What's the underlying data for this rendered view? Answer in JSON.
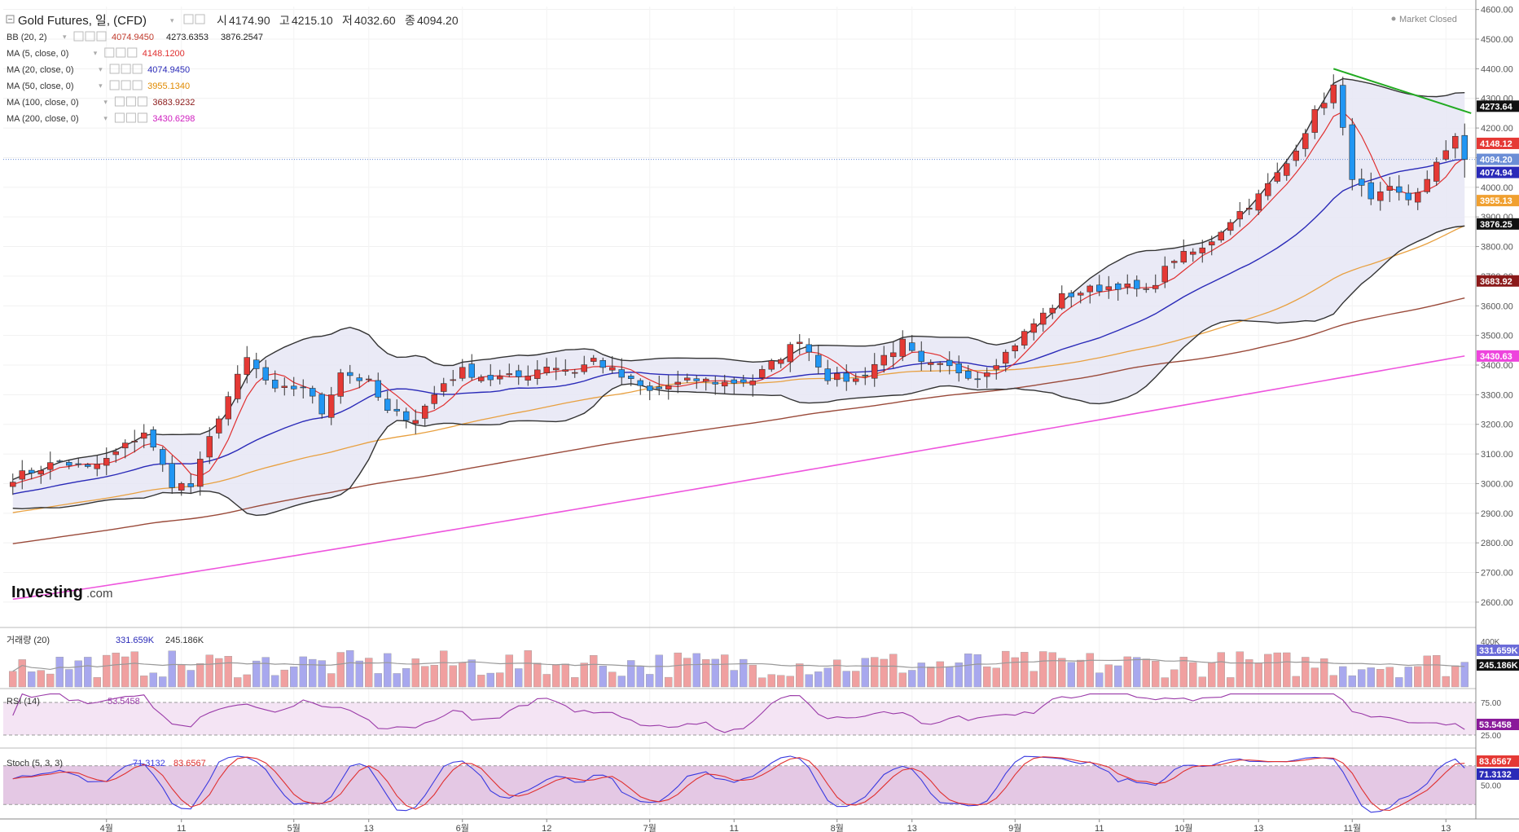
{
  "header": {
    "symbol": "Gold Futures, 일, (CFD)",
    "ohlc": [
      {
        "label": "시",
        "value": "4174.90"
      },
      {
        "label": "고",
        "value": "4215.10"
      },
      {
        "label": "저",
        "value": "4032.60"
      },
      {
        "label": "종",
        "value": "4094.20"
      }
    ],
    "market_status": "Market Closed"
  },
  "indicator_legend": [
    {
      "label": "BB (20, 2)",
      "values": [
        "4074.9450",
        "4273.6353",
        "3876.2547"
      ],
      "colors": [
        "#c0392b",
        "#222222",
        "#222222"
      ]
    },
    {
      "label": "MA (5, close, 0)",
      "values": [
        "4148.1200"
      ],
      "colors": [
        "#e03030"
      ]
    },
    {
      "label": "MA (20, close, 0)",
      "values": [
        "4074.9450"
      ],
      "colors": [
        "#2a2ab8"
      ]
    },
    {
      "label": "MA (50, close, 0)",
      "values": [
        "3955.1340"
      ],
      "colors": [
        "#e08a00"
      ]
    },
    {
      "label": "MA (100, close, 0)",
      "values": [
        "3683.9232"
      ],
      "colors": [
        "#8b1a1a"
      ]
    },
    {
      "label": "MA (200, close, 0)",
      "values": [
        "3430.6298"
      ],
      "colors": [
        "#d020c0"
      ]
    }
  ],
  "brand": {
    "name": "Investing",
    "suffix": ".com"
  },
  "colors": {
    "up": "#e53935",
    "down": "#2196f3",
    "bb_fill": "#e6e6f4",
    "ma5": "#e03030",
    "ma20": "#2a2ab8",
    "ma50": "#e8a040",
    "ma100": "#9a4a3a",
    "ma200": "#ee55dd",
    "trendline": "#22aa22"
  },
  "chart_data": [
    {
      "type": "candlestick",
      "title": "Gold Futures, 일, (CFD)",
      "x_tick_labels": [
        "4월",
        "11",
        "5월",
        "13",
        "6월",
        "12",
        "7월",
        "11",
        "8월",
        "13",
        "9월",
        "11",
        "10월",
        "13",
        "11월",
        "13"
      ],
      "y_ticks": [
        2600,
        2700,
        2800,
        2900,
        3000,
        3100,
        3200,
        3300,
        3400,
        3500,
        3600,
        3700,
        3800,
        3900,
        4000,
        4100,
        4200,
        4300,
        4400,
        4500,
        4600
      ],
      "ylim": [
        2520,
        4610
      ],
      "close_anchors": [
        [
          0,
          3020
        ],
        [
          5,
          3075
        ],
        [
          8,
          3050
        ],
        [
          10,
          3080
        ],
        [
          14,
          3175
        ],
        [
          17,
          3000
        ],
        [
          19,
          2990
        ],
        [
          22,
          3230
        ],
        [
          25,
          3420
        ],
        [
          28,
          3310
        ],
        [
          31,
          3330
        ],
        [
          33,
          3240
        ],
        [
          35,
          3380
        ],
        [
          38,
          3340
        ],
        [
          40,
          3240
        ],
        [
          43,
          3220
        ],
        [
          46,
          3340
        ],
        [
          48,
          3380
        ],
        [
          51,
          3355
        ],
        [
          54,
          3360
        ],
        [
          57,
          3400
        ],
        [
          60,
          3380
        ],
        [
          62,
          3420
        ],
        [
          65,
          3360
        ],
        [
          68,
          3310
        ],
        [
          70,
          3330
        ],
        [
          73,
          3350
        ],
        [
          76,
          3340
        ],
        [
          79,
          3350
        ],
        [
          82,
          3430
        ],
        [
          84,
          3490
        ],
        [
          87,
          3360
        ],
        [
          90,
          3350
        ],
        [
          93,
          3430
        ],
        [
          95,
          3475
        ],
        [
          97,
          3400
        ],
        [
          100,
          3390
        ],
        [
          103,
          3360
        ],
        [
          106,
          3440
        ],
        [
          109,
          3540
        ],
        [
          112,
          3630
        ],
        [
          115,
          3655
        ],
        [
          118,
          3670
        ],
        [
          121,
          3645
        ],
        [
          124,
          3760
        ],
        [
          127,
          3790
        ],
        [
          130,
          3890
        ],
        [
          133,
          3970
        ],
        [
          136,
          4080
        ],
        [
          139,
          4250
        ],
        [
          141,
          4340
        ],
        [
          143,
          4040
        ],
        [
          145,
          3950
        ],
        [
          147,
          3990
        ],
        [
          149,
          3960
        ],
        [
          151,
          4020
        ],
        [
          154,
          4180
        ],
        [
          155,
          4094
        ]
      ],
      "last_close": 4094.2,
      "indicators": {
        "bb": {
          "period": 20,
          "mult": 2,
          "basis": 4074.945,
          "upper": 4273.6353,
          "lower": 3876.2547
        },
        "ma5": 4148.12,
        "ma20": 4074.945,
        "ma50": 3955.134,
        "ma100": 3683.9232,
        "ma200": 3430.6298
      },
      "price_labels": [
        {
          "value": 4273.64,
          "text": "4273.64",
          "color": "#111111"
        },
        {
          "value": 4148.12,
          "text": "4148.12",
          "color": "#e53935"
        },
        {
          "value": 4094.2,
          "text": "4094.20",
          "color": "#6b8ed6"
        },
        {
          "value": 4074.94,
          "text": "4074.94",
          "color": "#2a2ab8"
        },
        {
          "value": 3955.13,
          "text": "3955.13",
          "color": "#f0a030"
        },
        {
          "value": 3876.25,
          "text": "3876.25",
          "color": "#111111"
        },
        {
          "value": 3683.92,
          "text": "3683.92",
          "color": "#8b1a1a"
        },
        {
          "value": 3430.63,
          "text": "3430.63",
          "color": "#ee44dd"
        }
      ],
      "trendline": [
        [
          141,
          4400
        ],
        [
          155,
          4250
        ]
      ]
    },
    {
      "type": "bar",
      "title": "거래량 (20)",
      "values_label": [
        "331.659K",
        "245.186K"
      ],
      "y_ticks": [
        "400K"
      ],
      "ylim": [
        0,
        450000
      ]
    },
    {
      "type": "line",
      "title": "RSI (14)",
      "values_label": [
        "53.5458"
      ],
      "y_ticks": [
        75.0,
        25.0
      ],
      "ylim": [
        10,
        90
      ]
    },
    {
      "type": "line",
      "title": "Stoch (5, 3, 3)",
      "values_label": [
        "71.3132",
        "83.6567"
      ],
      "y_ticks": [
        50.0
      ],
      "ylim": [
        0,
        100
      ]
    }
  ]
}
